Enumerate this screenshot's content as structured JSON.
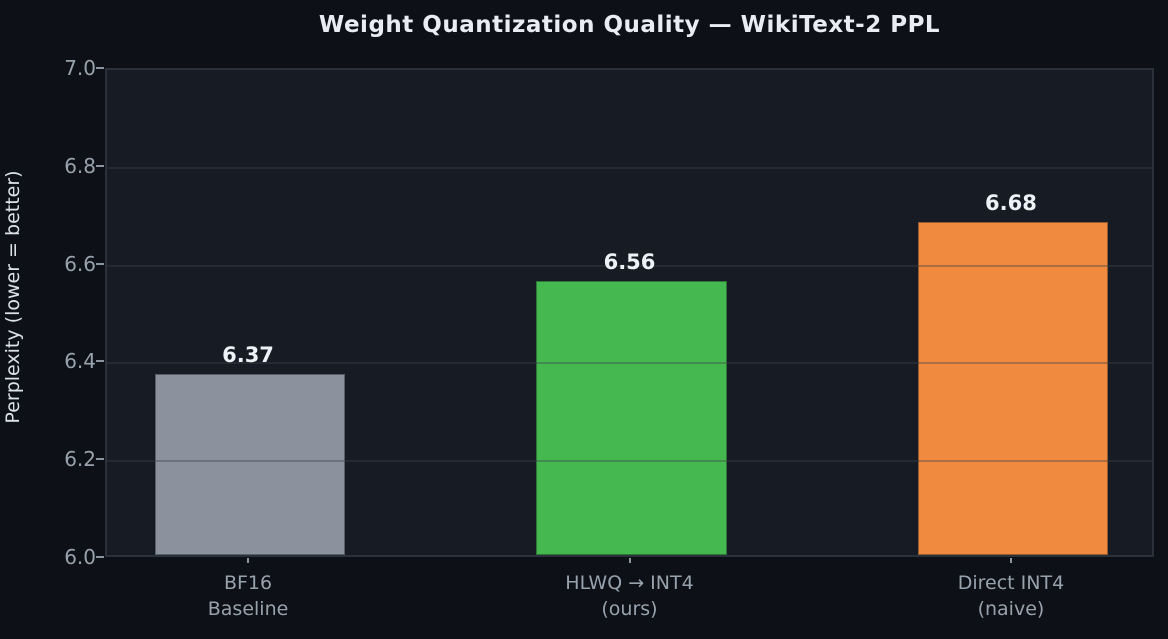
{
  "chart_data": {
    "type": "bar",
    "title": "Weight Quantization Quality — WikiText-2 PPL",
    "xlabel": "",
    "ylabel": "Perplexity (lower = better)",
    "categories": [
      "BF16\nBaseline",
      "HLWQ → INT4\n(ours)",
      "Direct INT4\n(naive)"
    ],
    "values": [
      6.37,
      6.56,
      6.68
    ],
    "value_labels": [
      "6.37",
      "6.56",
      "6.68"
    ],
    "bar_colors": [
      "#8b929e",
      "#45b84f",
      "#f08a3e"
    ],
    "ylim": [
      6.0,
      7.0
    ],
    "yticks": [
      6.0,
      6.2,
      6.4,
      6.6,
      6.8,
      7.0
    ],
    "ytick_labels": [
      "6.0",
      "6.2",
      "6.4",
      "6.6",
      "6.8",
      "7.0"
    ],
    "xlim": [
      -0.375,
      2.375
    ],
    "bar_width_units": 0.5,
    "grid": "horizontal gridlines drawn above bars",
    "legend_position": "none",
    "colors": {
      "figure_background": "#0d1117",
      "plot_background": "#171c24",
      "spine": "#2b313a",
      "title_text": "#e9edf3",
      "tick_text": "#98a2ad",
      "ylabel_text": "#dbe2e9",
      "value_label_text": "#eef2f7"
    }
  }
}
